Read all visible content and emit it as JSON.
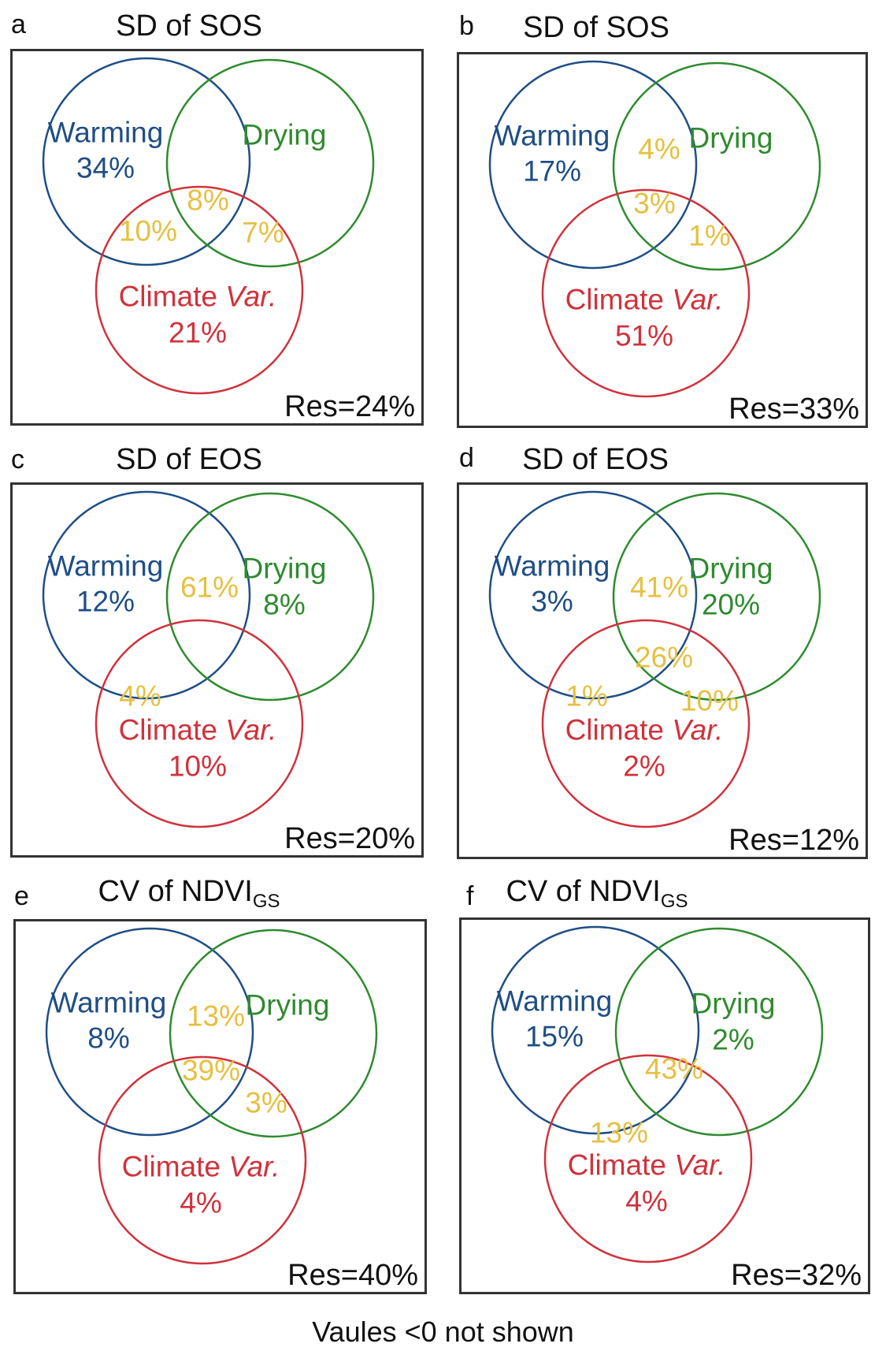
{
  "colors": {
    "warming": "#1f4e86",
    "drying": "#2e8b2e",
    "climate_var": "#d0323c",
    "overlap": "#e6c040",
    "box_border": "#333333"
  },
  "labels": {
    "warming": "Warming",
    "drying": "Drying",
    "climate_prefix": "Climate ",
    "climate_italic": "Var."
  },
  "footer": "Vaules <0 not shown",
  "chart_data": [
    {
      "type": "venn",
      "panel": "a",
      "title": "SD of SOS",
      "title_sub": "",
      "sets": [
        "Warming",
        "Drying",
        "Climate Var."
      ],
      "regions": {
        "warming_only": "34%",
        "drying_only": "",
        "climate_only": "21%",
        "warming_drying": "",
        "warming_climate": "10%",
        "drying_climate": "7%",
        "all_three": "8%"
      },
      "residual": "Res=24%"
    },
    {
      "type": "venn",
      "panel": "b",
      "title": "SD of SOS",
      "title_sub": "",
      "sets": [
        "Warming",
        "Drying",
        "Climate Var."
      ],
      "regions": {
        "warming_only": "17%",
        "drying_only": "",
        "climate_only": "51%",
        "warming_drying": "4%",
        "warming_climate": "",
        "drying_climate": "1%",
        "all_three": "3%"
      },
      "residual": "Res=33%"
    },
    {
      "type": "venn",
      "panel": "c",
      "title": "SD of EOS",
      "title_sub": "",
      "sets": [
        "Warming",
        "Drying",
        "Climate Var."
      ],
      "regions": {
        "warming_only": "12%",
        "drying_only": "8%",
        "climate_only": "10%",
        "warming_drying": "61%",
        "warming_climate": "4%",
        "drying_climate": "",
        "all_three": ""
      },
      "residual": "Res=20%"
    },
    {
      "type": "venn",
      "panel": "d",
      "title": "SD of EOS",
      "title_sub": "",
      "sets": [
        "Warming",
        "Drying",
        "Climate Var."
      ],
      "regions": {
        "warming_only": "3%",
        "drying_only": "20%",
        "climate_only": "2%",
        "warming_drying": "41%",
        "warming_climate": "1%",
        "drying_climate": "10%",
        "all_three": "26%"
      },
      "residual": "Res=12%"
    },
    {
      "type": "venn",
      "panel": "e",
      "title": "CV of NDVI",
      "title_sub": "GS",
      "sets": [
        "Warming",
        "Drying",
        "Climate Var."
      ],
      "regions": {
        "warming_only": "8%",
        "drying_only": "",
        "climate_only": "4%",
        "warming_drying": "13%",
        "warming_climate": "",
        "drying_climate": "3%",
        "all_three": "39%"
      },
      "residual": "Res=40%"
    },
    {
      "type": "venn",
      "panel": "f",
      "title": "CV of NDVI",
      "title_sub": "GS",
      "sets": [
        "Warming",
        "Drying",
        "Climate Var."
      ],
      "regions": {
        "warming_only": "15%",
        "drying_only": "2%",
        "climate_only": "4%",
        "warming_drying": "",
        "warming_climate": "13%",
        "drying_climate": "",
        "all_three": "43%"
      },
      "residual": "Res=32%"
    }
  ]
}
